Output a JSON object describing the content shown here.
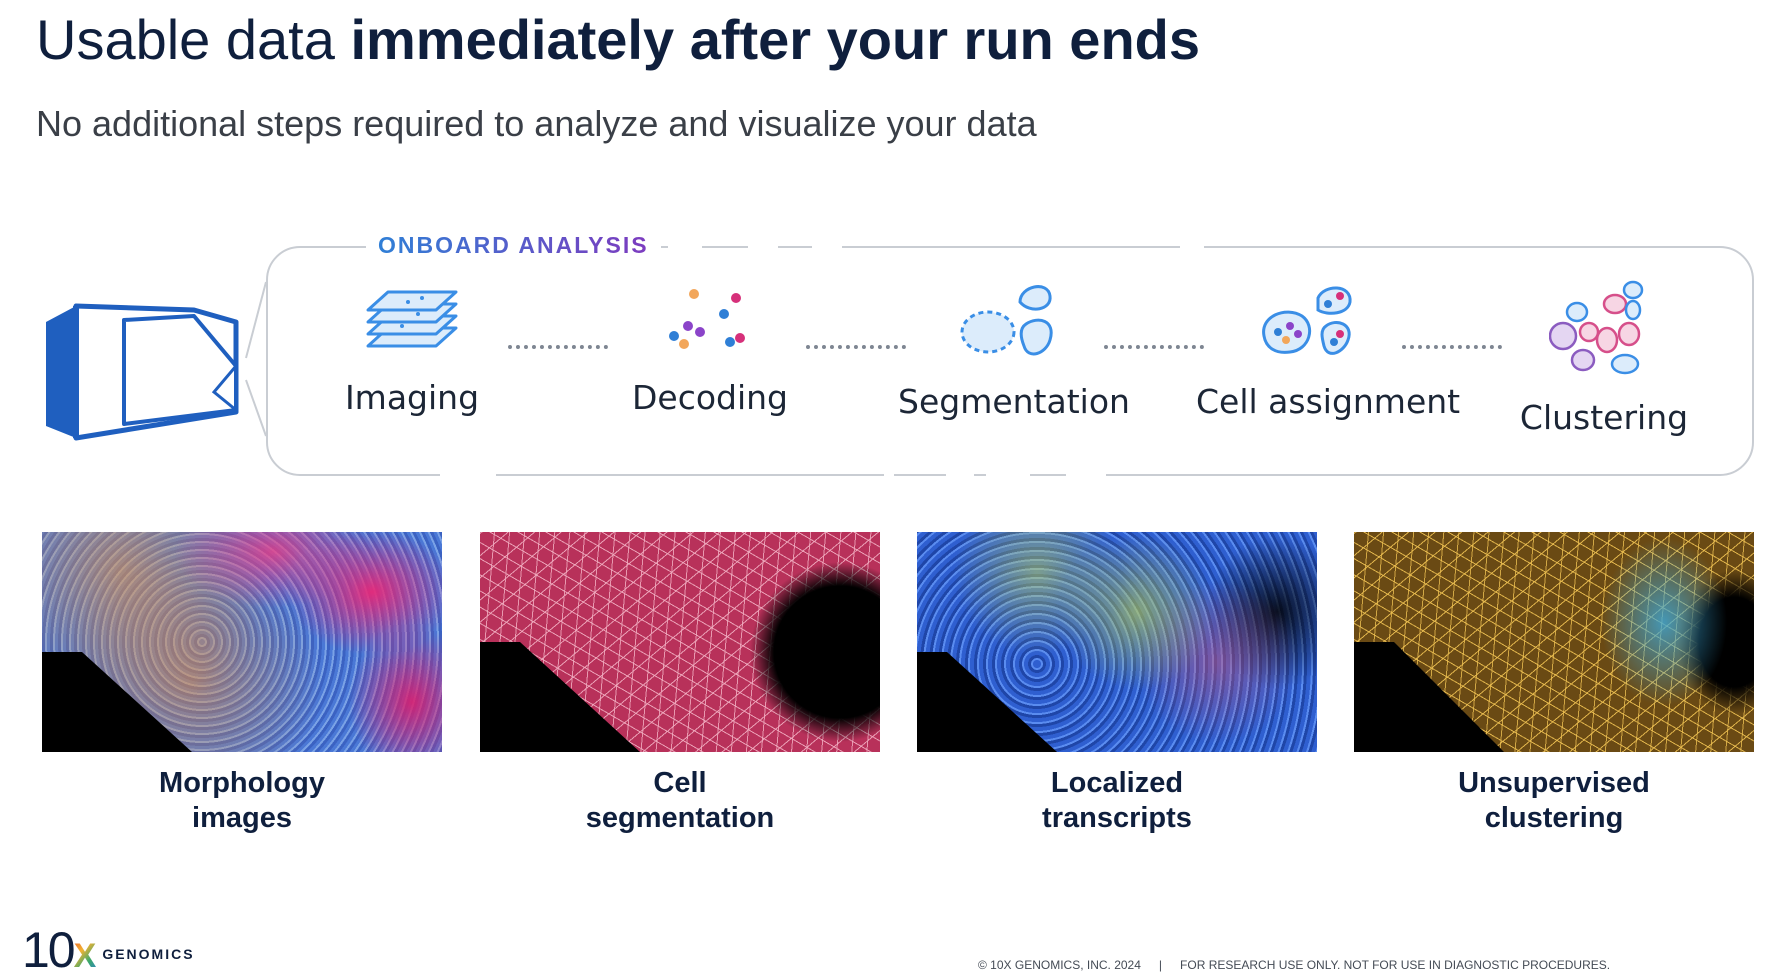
{
  "header": {
    "title_regular": "Usable data ",
    "title_bold": "immediately after your run ends",
    "subtitle": "No additional steps required to analyze and visualize your data"
  },
  "onboard": {
    "label": "ONBOARD ANALYSIS",
    "steps": [
      {
        "label": "Imaging",
        "icon": "stacked-layers-icon"
      },
      {
        "label": "Decoding",
        "icon": "colored-dots-icon"
      },
      {
        "label": "Segmentation",
        "icon": "cell-outlines-icon"
      },
      {
        "label": "Cell assignment",
        "icon": "cells-with-dots-icon"
      },
      {
        "label": "Clustering",
        "icon": "colored-cells-icon"
      }
    ]
  },
  "outputs": [
    {
      "line1": "Morphology",
      "line2": "images"
    },
    {
      "line1": "Cell",
      "line2": "segmentation"
    },
    {
      "line1": "Localized",
      "line2": "transcripts"
    },
    {
      "line1": "Unsupervised",
      "line2": "clustering"
    }
  ],
  "branding": {
    "logo_number": "10",
    "logo_x": "X",
    "logo_word": "GENOMICS"
  },
  "footer": {
    "copyright": "© 10X GENOMICS, INC. 2024",
    "separator": "|",
    "disclaimer": "FOR RESEARCH USE ONLY. NOT FOR USE IN DIAGNOSTIC PROCEDURES."
  },
  "colors": {
    "title": "#0f1f3d",
    "accent_blue": "#2f7fd6",
    "accent_purple": "#7d3bbf",
    "icon_blue": "#3a8ee6"
  }
}
